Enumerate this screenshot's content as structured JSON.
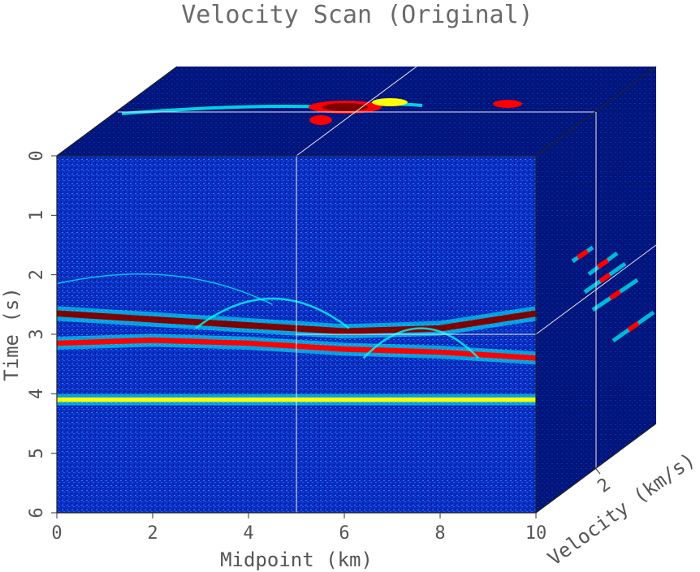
{
  "chart_data": {
    "type": "heatmap",
    "title": "Velocity Scan (Original)",
    "xlabel": "Midpoint (km)",
    "ylabel": "Time (s)",
    "zlabel": "Velocity (km/s)",
    "x_ticks": [
      "0",
      "2",
      "4",
      "6",
      "8",
      "10"
    ],
    "y_ticks": [
      "0",
      "1",
      "2",
      "3",
      "4",
      "5",
      "6"
    ],
    "z_ticks": [
      "2"
    ],
    "xlim": [
      0,
      10
    ],
    "ylim": [
      0,
      6
    ],
    "slice_midpoint_km": 5,
    "slice_time_s": 3.0,
    "colormap": [
      "#00008f",
      "#0000ff",
      "#00ffff",
      "#ffff00",
      "#ff0000",
      "#800000"
    ],
    "reflectors": [
      {
        "x": [
          0,
          2,
          4,
          6,
          8,
          10
        ],
        "y": [
          2.65,
          2.75,
          2.85,
          2.95,
          2.9,
          2.65
        ],
        "strength": 1.0
      },
      {
        "x": [
          0,
          2,
          4,
          6,
          8,
          10
        ],
        "y": [
          3.15,
          3.1,
          3.15,
          3.25,
          3.3,
          3.4
        ],
        "strength": 0.8
      },
      {
        "x": [
          0,
          10
        ],
        "y": [
          4.1,
          4.1
        ],
        "strength": 0.6
      }
    ]
  }
}
